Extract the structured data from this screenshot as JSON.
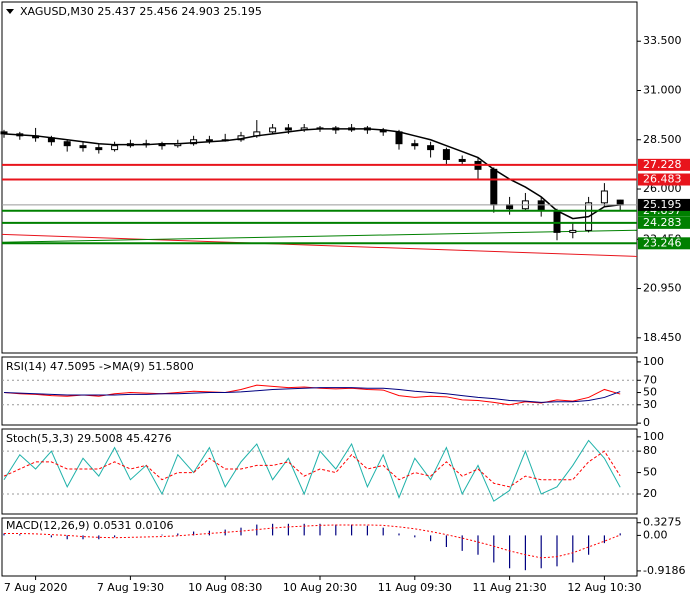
{
  "chart_data": [
    {
      "type": "candlestick",
      "title": "XAGUSD,M30  25.437 25.456 24.903 25.195",
      "categories": [
        null,
        null,
        "7 Aug 2020",
        null,
        null,
        null,
        null,
        null,
        "7 Aug 19:30",
        null,
        null,
        null,
        null,
        null,
        "10 Aug 08:30",
        null,
        null,
        null,
        null,
        null,
        "10 Aug 20:30",
        null,
        null,
        null,
        null,
        null,
        "11 Aug 09:30",
        null,
        null,
        null,
        null,
        null,
        "11 Aug 21:30",
        null,
        null,
        null,
        null,
        null,
        "12 Aug 10:30",
        null
      ],
      "candles": [
        [
          28.9,
          29.0,
          28.6,
          28.8
        ],
        [
          28.8,
          28.9,
          28.5,
          28.7
        ],
        [
          28.7,
          29.1,
          28.4,
          28.6
        ],
        [
          28.6,
          28.7,
          28.2,
          28.4
        ],
        [
          28.4,
          28.5,
          27.9,
          28.2
        ],
        [
          28.2,
          28.4,
          27.9,
          28.1
        ],
        [
          28.1,
          28.3,
          27.8,
          28.0
        ],
        [
          28.0,
          28.4,
          27.9,
          28.2
        ],
        [
          28.2,
          28.5,
          28.1,
          28.3
        ],
        [
          28.3,
          28.5,
          28.1,
          28.3
        ],
        [
          28.3,
          28.4,
          28.0,
          28.2
        ],
        [
          28.2,
          28.5,
          28.1,
          28.3
        ],
        [
          28.3,
          28.7,
          28.2,
          28.5
        ],
        [
          28.5,
          28.7,
          28.3,
          28.5
        ],
        [
          28.5,
          28.8,
          28.4,
          28.5
        ],
        [
          28.5,
          28.9,
          28.4,
          28.7
        ],
        [
          28.7,
          29.5,
          28.6,
          28.9
        ],
        [
          28.9,
          29.3,
          28.8,
          29.1
        ],
        [
          29.1,
          29.3,
          28.8,
          29.0
        ],
        [
          29.0,
          29.3,
          28.9,
          29.1
        ],
        [
          29.1,
          29.2,
          28.9,
          29.1
        ],
        [
          29.1,
          29.2,
          28.8,
          29.0
        ],
        [
          29.0,
          29.3,
          28.9,
          29.1
        ],
        [
          29.1,
          29.2,
          28.8,
          29.0
        ],
        [
          29.0,
          29.1,
          28.7,
          28.9
        ],
        [
          28.9,
          29.0,
          28.0,
          28.3
        ],
        [
          28.3,
          28.5,
          28.0,
          28.2
        ],
        [
          28.2,
          28.4,
          27.6,
          28.0
        ],
        [
          28.0,
          28.1,
          27.2,
          27.5
        ],
        [
          27.5,
          27.7,
          27.2,
          27.4
        ],
        [
          27.4,
          27.6,
          26.5,
          27.0
        ],
        [
          27.0,
          27.1,
          24.8,
          25.2
        ],
        [
          25.2,
          25.6,
          24.7,
          25.0
        ],
        [
          25.0,
          25.8,
          24.9,
          25.4
        ],
        [
          25.4,
          25.6,
          24.6,
          24.9
        ],
        [
          24.9,
          25.0,
          23.4,
          23.8
        ],
        [
          23.8,
          24.3,
          23.5,
          23.9
        ],
        [
          23.9,
          25.6,
          23.8,
          25.3
        ],
        [
          25.3,
          26.3,
          25.1,
          25.9
        ],
        [
          25.437,
          25.456,
          24.903,
          25.195
        ]
      ],
      "ma": {
        "color": "#000000",
        "values": [
          28.8,
          28.75,
          28.7,
          28.6,
          28.5,
          28.4,
          28.3,
          28.25,
          28.25,
          28.25,
          28.3,
          28.3,
          28.35,
          28.4,
          28.45,
          28.55,
          28.7,
          28.8,
          28.9,
          29.0,
          29.05,
          29.05,
          29.05,
          29.05,
          29.0,
          28.9,
          28.7,
          28.5,
          28.2,
          27.9,
          27.6,
          27.0,
          26.5,
          26.1,
          25.6,
          24.9,
          24.5,
          24.6,
          25.1,
          25.2
        ]
      },
      "ylim": [
        17.68,
        35.49
      ],
      "yticks": [
        {
          "value": 33.5,
          "label": "33.500"
        },
        {
          "value": 31.0,
          "label": "31.000"
        },
        {
          "value": 28.5,
          "label": "28.500"
        },
        {
          "value": 26.0,
          "label": "26.000"
        },
        {
          "value": 23.45,
          "label": "23.450"
        },
        {
          "value": 20.95,
          "label": "20.950"
        },
        {
          "value": 18.45,
          "label": "18.450"
        }
      ],
      "levels": [
        {
          "value": 27.228,
          "color": "#e8141c"
        },
        {
          "value": 26.483,
          "color": "#e8141c"
        },
        {
          "value": 24.897,
          "color": "#008000"
        },
        {
          "value": 24.283,
          "color": "#008000"
        },
        {
          "value": 23.246,
          "color": "#008000"
        }
      ],
      "price": {
        "value": 25.195,
        "color": "#000000"
      },
      "trendlines": [
        {
          "color": "#e8141c",
          "values": [
            23.7,
            22.58
          ]
        },
        {
          "color": "#008000",
          "values": [
            23.3,
            23.91
          ]
        }
      ]
    },
    {
      "type": "oscillator",
      "title": "RSI(14) 47.5095  ->MA(9) 51.5800",
      "series": [
        {
          "color": "#ff0000",
          "dash": false,
          "values": [
            50,
            48,
            47,
            45,
            44,
            46,
            44,
            48,
            50,
            49,
            48,
            50,
            52,
            51,
            50,
            55,
            62,
            60,
            58,
            59,
            57,
            56,
            57,
            55,
            54,
            45,
            42,
            44,
            43,
            38,
            37,
            34,
            30,
            35,
            33,
            38,
            36,
            42,
            55,
            47.5095
          ]
        },
        {
          "color": "#000080",
          "dash": false,
          "values": [
            50,
            49,
            48,
            47,
            46,
            46,
            46,
            46,
            47,
            47,
            48,
            48,
            49,
            50,
            50,
            51,
            53,
            55,
            56,
            57,
            58,
            58,
            58,
            57,
            57,
            55,
            52,
            50,
            48,
            45,
            42,
            40,
            37,
            36,
            34,
            35,
            35,
            37,
            42,
            51.58
          ]
        }
      ],
      "ylim": [
        -3,
        108
      ],
      "yticks": [
        100,
        70,
        50,
        30,
        0
      ],
      "levels": [
        70,
        30
      ]
    },
    {
      "type": "oscillator",
      "title": "Stoch(5,3,3) 29.5008 45.4276",
      "series": [
        {
          "color": "#20b2aa",
          "dash": false,
          "values": [
            40,
            75,
            55,
            80,
            30,
            70,
            45,
            85,
            40,
            60,
            20,
            75,
            50,
            85,
            30,
            65,
            90,
            40,
            70,
            20,
            80,
            55,
            90,
            30,
            75,
            15,
            70,
            40,
            85,
            20,
            60,
            10,
            25,
            80,
            20,
            30,
            60,
            95,
            70,
            29.5008
          ]
        },
        {
          "color": "#ff0000",
          "dash": true,
          "values": [
            45,
            55,
            65,
            65,
            55,
            55,
            55,
            65,
            55,
            60,
            40,
            50,
            50,
            70,
            55,
            55,
            60,
            60,
            65,
            45,
            55,
            50,
            75,
            55,
            60,
            40,
            50,
            45,
            65,
            45,
            55,
            35,
            30,
            45,
            40,
            40,
            40,
            65,
            80,
            45.4276
          ]
        }
      ],
      "ylim": [
        -8,
        111
      ],
      "yticks": [
        100,
        80,
        50,
        20
      ],
      "levels": [
        80,
        20
      ]
    },
    {
      "type": "macd",
      "title": "MACD(12,26,9) 0.0531 0.0106",
      "histogram": {
        "color": "#000080",
        "values": [
          0.05,
          0.03,
          0.0,
          -0.05,
          -0.1,
          -0.1,
          -0.1,
          -0.05,
          0.0,
          0.0,
          0.02,
          0.05,
          0.1,
          0.12,
          0.15,
          0.2,
          0.28,
          0.3,
          0.3,
          0.3,
          0.3,
          0.28,
          0.28,
          0.25,
          0.2,
          0.05,
          -0.05,
          -0.15,
          -0.3,
          -0.4,
          -0.5,
          -0.7,
          -0.85,
          -0.9,
          -0.85,
          -0.8,
          -0.7,
          -0.5,
          -0.2,
          0.0531
        ]
      },
      "signal": {
        "color": "#ff0000",
        "values": [
          0.05,
          0.05,
          0.04,
          0.02,
          0,
          -0.03,
          -0.05,
          -0.06,
          -0.05,
          -0.04,
          -0.03,
          -0.01,
          0.02,
          0.05,
          0.08,
          0.11,
          0.15,
          0.19,
          0.22,
          0.24,
          0.26,
          0.27,
          0.27,
          0.27,
          0.26,
          0.22,
          0.17,
          0.1,
          0.02,
          -0.07,
          -0.17,
          -0.28,
          -0.4,
          -0.5,
          -0.58,
          -0.55,
          -0.45,
          -0.3,
          -0.15,
          0.0106
        ]
      },
      "ylim": [
        -1.05,
        0.45
      ],
      "yticks": [
        0.3275,
        {
          "value": 0,
          "label": "0.00"
        },
        -0.9186
      ]
    }
  ]
}
